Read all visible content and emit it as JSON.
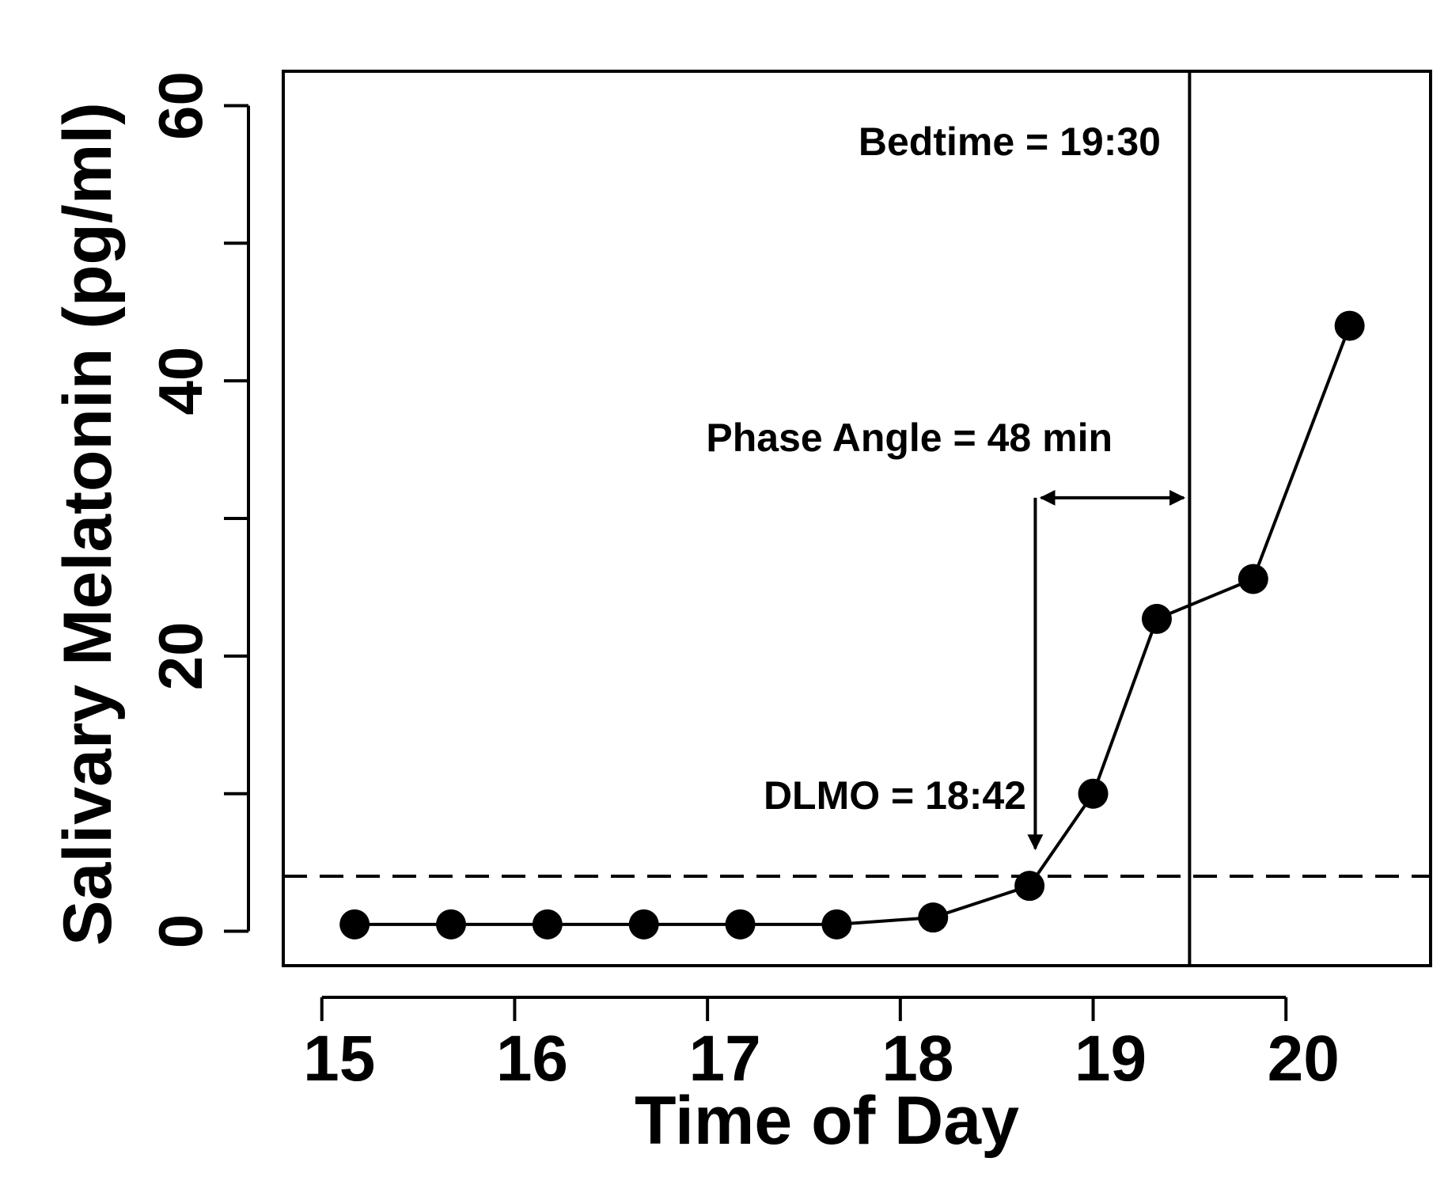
{
  "chart_data": {
    "type": "line",
    "xlabel": "Time of Day",
    "ylabel": "Salivary Melatonin (pg/ml)",
    "xlim": [
      14.8,
      20.75
    ],
    "ylim": [
      -2.5,
      62.5
    ],
    "x_ticks": [
      15,
      16,
      17,
      18,
      19,
      20
    ],
    "y_ticks": [
      0,
      10,
      20,
      30,
      40,
      50,
      60
    ],
    "y_tick_labels": [
      {
        "value": 0,
        "label": "0"
      },
      {
        "value": 20,
        "label": "20"
      },
      {
        "value": 40,
        "label": "40"
      },
      {
        "value": 60,
        "label": "60"
      }
    ],
    "grid": false,
    "series": [
      {
        "x": [
          15.17,
          15.67,
          16.17,
          16.67,
          17.17,
          17.67,
          18.17,
          18.67,
          19.0,
          19.33,
          19.83,
          20.33
        ],
        "y": [
          0.5,
          0.5,
          0.5,
          0.5,
          0.5,
          0.5,
          1.0,
          3.3,
          10.0,
          22.7,
          25.6,
          44.0
        ],
        "marker": "circle",
        "color": "#000000"
      }
    ],
    "threshold": {
      "y": 4.0,
      "style": "dashed"
    },
    "bedtime_line": {
      "x": 19.5
    },
    "annotations": {
      "bedtime": "Bedtime = 19:30",
      "phase_angle": "Phase Angle = 48 min",
      "dlmo": "DLMO = 18:42"
    },
    "dlmo_arrow": {
      "x": 18.7,
      "y_from": 31.5,
      "y_to": 6.0
    },
    "phase_arrow": {
      "x_from": 18.73,
      "x_to": 19.47,
      "y": 31.5
    }
  }
}
